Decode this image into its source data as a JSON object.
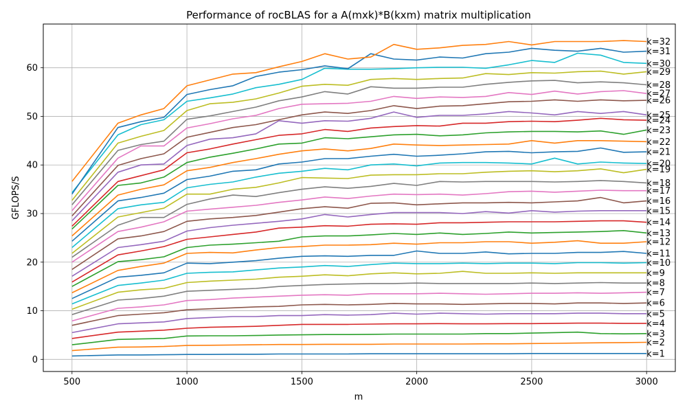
{
  "chart_data": {
    "type": "line",
    "title": "Performance of rocBLAS for a A(mxk)*B(kxm) matrix multiplication",
    "xlabel": "m",
    "ylabel": "GFLOPS/S",
    "xlim": [
      375,
      3125
    ],
    "ylim": [
      -2.5,
      69
    ],
    "xticks": [
      500,
      1000,
      1500,
      2000,
      2500,
      3000
    ],
    "yticks": [
      0,
      10,
      20,
      30,
      40,
      50,
      60
    ],
    "grid": true,
    "x": [
      500,
      700,
      800,
      900,
      1000,
      1100,
      1200,
      1300,
      1400,
      1500,
      1600,
      1700,
      1800,
      1900,
      2000,
      2100,
      2200,
      2300,
      2400,
      2500,
      2600,
      2700,
      2800,
      2900,
      3000
    ],
    "series": [
      {
        "name": "k=1",
        "color": "#1f77b4",
        "values": [
          0.7,
          0.9,
          0.9,
          0.95,
          1.0,
          1.0,
          1.05,
          1.05,
          1.1,
          1.1,
          1.1,
          1.1,
          1.15,
          1.15,
          1.15,
          1.15,
          1.15,
          1.15,
          1.15,
          1.2,
          1.2,
          1.2,
          1.2,
          1.2,
          1.2
        ]
      },
      {
        "name": "k=2",
        "color": "#ff7f0e",
        "values": [
          1.8,
          2.5,
          2.55,
          2.65,
          2.85,
          2.9,
          2.95,
          3.0,
          3.05,
          3.05,
          3.1,
          3.1,
          3.1,
          3.15,
          3.15,
          3.15,
          3.15,
          3.2,
          3.2,
          3.25,
          3.3,
          3.35,
          3.4,
          3.45,
          3.5
        ]
      },
      {
        "name": "k=3",
        "color": "#2ca02c",
        "values": [
          3.0,
          4.1,
          4.2,
          4.3,
          4.8,
          4.85,
          4.85,
          4.9,
          5.0,
          5.05,
          5.1,
          5.1,
          5.15,
          5.2,
          5.2,
          5.2,
          5.2,
          5.3,
          5.3,
          5.4,
          5.5,
          5.6,
          5.3,
          5.25,
          5.3
        ]
      },
      {
        "name": "k=4",
        "color": "#d62728",
        "values": [
          4.3,
          5.6,
          5.8,
          6.0,
          6.4,
          6.6,
          6.7,
          6.8,
          7.0,
          7.2,
          7.2,
          7.2,
          7.25,
          7.3,
          7.3,
          7.35,
          7.3,
          7.3,
          7.35,
          7.35,
          7.4,
          7.45,
          7.45,
          7.4,
          7.4
        ]
      },
      {
        "name": "k=5",
        "color": "#9467bd",
        "values": [
          5.5,
          7.3,
          7.5,
          7.7,
          8.4,
          8.6,
          8.8,
          8.8,
          9.0,
          9.0,
          9.2,
          9.1,
          9.2,
          9.5,
          9.3,
          9.5,
          9.4,
          9.3,
          9.4,
          9.4,
          9.4,
          9.5,
          9.5,
          9.4,
          9.4
        ]
      },
      {
        "name": "k=6",
        "color": "#8c564b",
        "values": [
          7.0,
          9.0,
          9.3,
          9.6,
          10.2,
          10.4,
          10.6,
          10.8,
          10.9,
          11.2,
          11.3,
          11.2,
          11.3,
          11.5,
          11.4,
          11.4,
          11.3,
          11.4,
          11.5,
          11.5,
          11.4,
          11.6,
          11.6,
          11.5,
          11.6
        ]
      },
      {
        "name": "k=7",
        "color": "#e377c2",
        "values": [
          7.9,
          10.5,
          10.8,
          11.2,
          12.1,
          12.3,
          12.6,
          12.8,
          13.0,
          13.2,
          13.3,
          13.2,
          13.5,
          13.5,
          13.5,
          13.6,
          13.5,
          13.4,
          13.5,
          13.6,
          13.6,
          13.7,
          13.6,
          13.7,
          13.8
        ]
      },
      {
        "name": "k=8",
        "color": "#7f7f7f",
        "values": [
          9.2,
          12.2,
          12.5,
          13.0,
          14.0,
          14.2,
          14.4,
          14.6,
          15.0,
          15.2,
          15.4,
          15.5,
          15.6,
          15.6,
          15.7,
          15.6,
          15.6,
          15.6,
          15.6,
          15.7,
          15.6,
          15.7,
          15.8,
          15.7,
          15.7
        ]
      },
      {
        "name": "k=9",
        "color": "#bcbd22",
        "values": [
          10.3,
          13.8,
          14.3,
          14.6,
          15.8,
          16.1,
          16.3,
          16.5,
          16.9,
          17.1,
          17.4,
          17.2,
          17.6,
          17.8,
          17.6,
          17.7,
          18.1,
          17.7,
          17.7,
          17.8,
          17.7,
          17.8,
          17.8,
          17.8,
          17.8
        ]
      },
      {
        "name": "k=10",
        "color": "#17becf",
        "values": [
          11.4,
          15.2,
          15.7,
          16.3,
          17.7,
          17.9,
          18.0,
          18.4,
          18.8,
          19.0,
          19.3,
          19.1,
          19.5,
          19.8,
          19.7,
          19.7,
          19.8,
          19.7,
          19.8,
          19.8,
          19.7,
          19.9,
          19.9,
          19.8,
          19.9
        ]
      },
      {
        "name": "k=11",
        "color": "#1f77b4",
        "values": [
          12.5,
          16.9,
          17.3,
          17.8,
          19.8,
          19.7,
          20.0,
          20.3,
          20.8,
          21.2,
          21.3,
          21.2,
          21.4,
          21.4,
          22.3,
          21.8,
          21.8,
          22.1,
          21.7,
          21.8,
          21.8,
          22.0,
          22.0,
          22.2,
          21.8
        ]
      },
      {
        "name": "k=12",
        "color": "#ff7f0e",
        "values": [
          13.7,
          18.3,
          19.1,
          19.8,
          21.8,
          22.0,
          21.9,
          22.5,
          23.0,
          23.2,
          23.5,
          23.5,
          23.6,
          23.9,
          23.7,
          24.0,
          24.0,
          24.2,
          24.2,
          23.9,
          24.1,
          24.4,
          23.9,
          23.9,
          24.2
        ]
      },
      {
        "name": "k=13",
        "color": "#2ca02c",
        "values": [
          15.0,
          20.1,
          20.5,
          21.1,
          23.0,
          23.5,
          23.7,
          24.0,
          24.3,
          25.2,
          25.4,
          25.4,
          25.6,
          25.9,
          25.7,
          26.0,
          25.7,
          25.9,
          26.2,
          26.0,
          26.1,
          26.2,
          26.3,
          26.5,
          26.0
        ]
      },
      {
        "name": "k=14",
        "color": "#d62728",
        "values": [
          15.9,
          21.5,
          22.3,
          23.2,
          24.7,
          25.2,
          25.7,
          26.2,
          27.0,
          27.2,
          27.5,
          27.4,
          27.8,
          27.9,
          27.8,
          28.1,
          28.1,
          28.2,
          28.3,
          28.3,
          28.3,
          28.4,
          28.5,
          28.5,
          28.2
        ]
      },
      {
        "name": "k=15",
        "color": "#9467bd",
        "values": [
          17.1,
          23.0,
          23.6,
          24.3,
          26.4,
          27.1,
          27.6,
          28.0,
          28.4,
          28.9,
          29.8,
          29.3,
          29.8,
          30.2,
          30.2,
          30.2,
          30.0,
          30.4,
          30.1,
          30.6,
          30.3,
          30.5,
          30.6,
          30.6,
          30.6
        ]
      },
      {
        "name": "k=16",
        "color": "#8c564b",
        "values": [
          18.5,
          24.8,
          25.4,
          26.3,
          28.4,
          28.9,
          29.2,
          29.6,
          30.3,
          31.0,
          31.4,
          31.1,
          32.1,
          32.2,
          31.8,
          32.0,
          32.2,
          32.2,
          32.3,
          32.2,
          32.4,
          32.6,
          33.3,
          32.2,
          32.6
        ]
      },
      {
        "name": "k=17",
        "color": "#e377c2",
        "values": [
          20.0,
          26.3,
          27.2,
          28.3,
          30.5,
          30.9,
          31.3,
          31.7,
          32.3,
          32.8,
          33.4,
          33.1,
          33.6,
          34.0,
          33.9,
          34.0,
          33.8,
          34.1,
          34.5,
          34.6,
          34.4,
          34.6,
          34.8,
          34.7,
          34.7
        ]
      },
      {
        "name": "k=18",
        "color": "#7f7f7f",
        "values": [
          21.0,
          27.6,
          29.2,
          29.2,
          31.9,
          33.0,
          33.8,
          33.5,
          34.3,
          35.0,
          35.5,
          35.2,
          35.6,
          36.2,
          35.8,
          36.6,
          36.5,
          36.6,
          36.6,
          36.6,
          36.5,
          36.6,
          36.8,
          36.6,
          36.3
        ]
      },
      {
        "name": "k=19",
        "color": "#bcbd22",
        "values": [
          21.8,
          29.3,
          30.2,
          31.1,
          34.0,
          34.0,
          35.0,
          35.4,
          36.3,
          37.4,
          37.3,
          37.2,
          37.9,
          38.0,
          38.0,
          38.2,
          38.2,
          38.5,
          38.7,
          38.8,
          38.6,
          38.8,
          39.2,
          38.4,
          39.1
        ]
      },
      {
        "name": "k=20",
        "color": "#17becf",
        "values": [
          23.0,
          31.0,
          31.8,
          32.3,
          35.3,
          36.0,
          36.5,
          37.5,
          38.3,
          38.7,
          39.3,
          39.0,
          40.0,
          40.2,
          39.8,
          40.4,
          40.5,
          40.5,
          40.4,
          40.2,
          41.4,
          40.2,
          40.6,
          40.4,
          40.3
        ]
      },
      {
        "name": "k=21",
        "color": "#1f77b4",
        "values": [
          24.3,
          32.6,
          33.3,
          34.2,
          37.0,
          37.7,
          38.7,
          39.0,
          40.2,
          40.6,
          41.3,
          41.3,
          41.8,
          42.2,
          41.8,
          42.0,
          42.3,
          42.7,
          42.8,
          42.5,
          42.7,
          42.8,
          43.5,
          42.6,
          42.7
        ]
      },
      {
        "name": "k=22",
        "color": "#ff7f0e",
        "values": [
          25.4,
          33.8,
          35.0,
          35.9,
          38.8,
          39.5,
          40.5,
          41.3,
          42.2,
          42.9,
          43.3,
          42.9,
          43.4,
          44.3,
          44.1,
          44.0,
          44.1,
          44.2,
          44.3,
          45.0,
          44.5,
          45.0,
          45.0,
          44.9,
          44.8
        ]
      },
      {
        "name": "k=23",
        "color": "#2ca02c",
        "values": [
          26.8,
          35.8,
          36.3,
          37.5,
          40.5,
          41.6,
          42.4,
          43.3,
          44.3,
          44.5,
          45.6,
          45.4,
          45.8,
          46.2,
          46.3,
          46.0,
          46.2,
          46.6,
          46.8,
          46.9,
          46.9,
          46.8,
          47.0,
          46.3,
          47.2
        ]
      },
      {
        "name": "k=24",
        "color": "#d62728",
        "values": [
          27.4,
          36.6,
          37.8,
          39.0,
          42.5,
          43.3,
          44.3,
          45.2,
          46.1,
          46.4,
          47.3,
          46.9,
          47.6,
          47.9,
          48.1,
          48.0,
          48.6,
          48.6,
          48.9,
          49.0,
          48.9,
          49.2,
          49.6,
          49.3,
          49.2
        ]
      },
      {
        "name": "k=25",
        "color": "#9467bd",
        "values": [
          28.5,
          38.5,
          40.0,
          40.2,
          44.0,
          45.3,
          45.6,
          46.4,
          49.1,
          48.6,
          49.1,
          49.0,
          49.6,
          50.9,
          49.8,
          50.2,
          50.2,
          50.5,
          51.0,
          50.7,
          50.3,
          51.0,
          50.6,
          51.0,
          50.3
        ]
      },
      {
        "name": "k=26",
        "color": "#8c564b",
        "values": [
          29.5,
          39.9,
          41.3,
          42.3,
          45.7,
          46.7,
          47.7,
          48.3,
          49.3,
          50.3,
          50.9,
          50.6,
          51.2,
          52.2,
          51.6,
          52.1,
          52.2,
          52.6,
          53.0,
          53.1,
          53.4,
          53.1,
          53.4,
          53.2,
          53.3
        ]
      },
      {
        "name": "k=27",
        "color": "#e377c2",
        "values": [
          30.6,
          41.4,
          43.9,
          43.9,
          47.6,
          48.5,
          49.5,
          50.2,
          51.6,
          52.5,
          52.6,
          52.7,
          53.1,
          54.1,
          53.7,
          54.0,
          53.9,
          54.1,
          54.9,
          54.5,
          55.2,
          54.6,
          55.1,
          55.3,
          54.7
        ]
      },
      {
        "name": "k=28",
        "color": "#7f7f7f",
        "values": [
          31.8,
          43.0,
          44.2,
          44.9,
          49.4,
          50.1,
          51.0,
          51.9,
          53.2,
          54.0,
          55.1,
          54.6,
          56.1,
          55.8,
          55.8,
          56.0,
          56.0,
          56.6,
          57.0,
          57.3,
          57.4,
          56.9,
          57.1,
          56.9,
          56.5
        ]
      },
      {
        "name": "k=29",
        "color": "#bcbd22",
        "values": [
          32.7,
          44.5,
          45.9,
          47.1,
          51.2,
          52.6,
          52.9,
          53.6,
          54.8,
          56.2,
          56.6,
          56.4,
          57.6,
          57.8,
          57.6,
          57.8,
          57.9,
          58.8,
          58.6,
          59.0,
          58.9,
          59.2,
          59.3,
          58.7,
          59.2
        ]
      },
      {
        "name": "k=30",
        "color": "#17becf",
        "values": [
          34.3,
          46.2,
          48.3,
          49.3,
          53.1,
          53.8,
          54.6,
          55.9,
          56.6,
          57.6,
          59.9,
          59.7,
          59.7,
          59.8,
          60.0,
          60.1,
          60.1,
          59.9,
          60.6,
          61.5,
          61.1,
          63.0,
          62.6,
          61.1,
          60.9
        ]
      },
      {
        "name": "k=31",
        "color": "#1f77b4",
        "values": [
          34.0,
          47.7,
          48.9,
          49.8,
          54.5,
          55.5,
          56.3,
          58.2,
          59.1,
          59.6,
          60.4,
          59.8,
          62.9,
          61.8,
          61.6,
          62.2,
          62.0,
          62.9,
          63.2,
          64.0,
          63.6,
          63.4,
          64.0,
          63.2,
          63.4
        ]
      },
      {
        "name": "k=32",
        "color": "#ff7f0e",
        "values": [
          36.6,
          48.6,
          50.3,
          51.6,
          56.3,
          57.5,
          58.7,
          59.0,
          60.2,
          61.3,
          62.9,
          61.8,
          62.2,
          64.8,
          63.8,
          64.1,
          64.6,
          64.8,
          65.4,
          64.7,
          65.4,
          65.4,
          65.4,
          65.6,
          65.4
        ]
      }
    ]
  }
}
